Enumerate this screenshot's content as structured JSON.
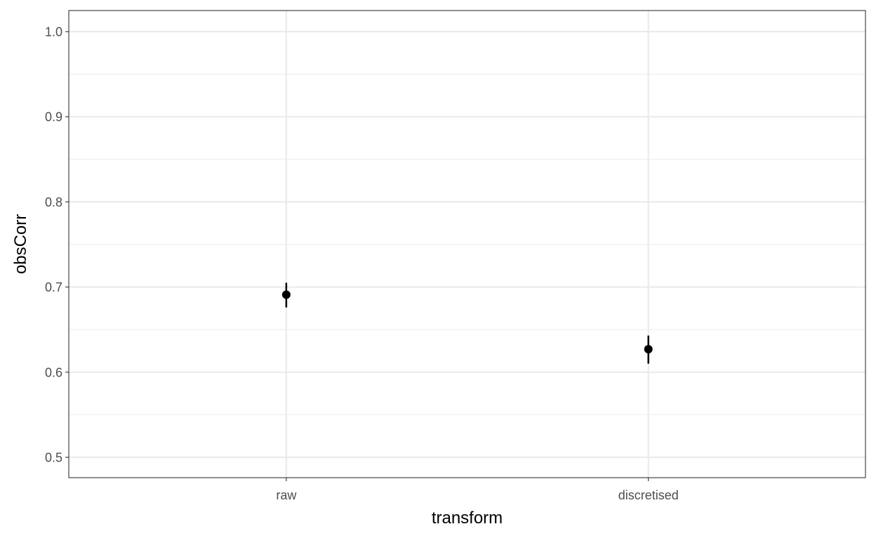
{
  "chart_data": {
    "type": "pointrange",
    "xlabel": "transform",
    "ylabel": "obsCorr",
    "categories": [
      "raw",
      "discretised"
    ],
    "values": [
      0.691,
      0.627
    ],
    "lower": [
      0.676,
      0.61
    ],
    "upper": [
      0.705,
      0.643
    ],
    "ylim": [
      0.5,
      1.0
    ],
    "yticks": [
      "0.5",
      "0.6",
      "0.7",
      "0.8",
      "0.9",
      "1.0"
    ],
    "grid": true,
    "theme": "bw",
    "colors": {
      "point": "#000000",
      "grid": "#ebebeb",
      "border": "#333333",
      "tick_label": "#4d4d4d"
    }
  }
}
